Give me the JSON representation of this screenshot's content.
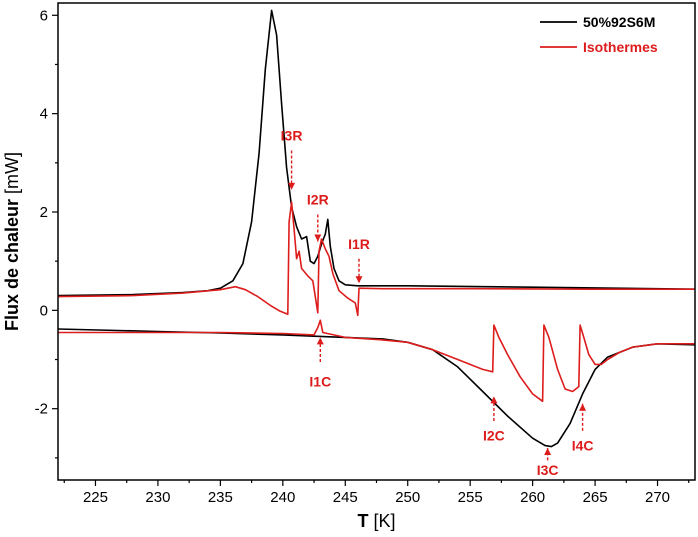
{
  "chart_data": {
    "type": "line",
    "title": "",
    "xlabel_bold": "T",
    "xlabel_unit": "[K]",
    "ylabel_bold": "Flux de chaleur",
    "ylabel_unit": "[mW]",
    "xlim": [
      222,
      273
    ],
    "ylim": [
      -3.45,
      6.25
    ],
    "x_ticks": [
      225,
      230,
      235,
      240,
      245,
      250,
      255,
      260,
      265,
      270
    ],
    "y_ticks": [
      6,
      4,
      2,
      0,
      -2
    ],
    "grid": false,
    "legend_position": "top-right",
    "colors": {
      "black": "#000000",
      "red": "#dd1c1c"
    },
    "series": [
      {
        "name": "50%92S6M",
        "color": "#000000",
        "segments": [
          [
            [
              222,
              0.3
            ],
            [
              228,
              0.32
            ],
            [
              232,
              0.36
            ],
            [
              234,
              0.4
            ],
            [
              235,
              0.45
            ],
            [
              236,
              0.6
            ],
            [
              236.8,
              0.95
            ],
            [
              237.5,
              1.8
            ],
            [
              238.1,
              3.2
            ],
            [
              238.6,
              4.9
            ],
            [
              239.1,
              6.1
            ],
            [
              239.5,
              5.6
            ],
            [
              239.9,
              4.2
            ],
            [
              240.3,
              2.9
            ],
            [
              240.7,
              2.1
            ],
            [
              241.1,
              1.7
            ],
            [
              241.5,
              1.45
            ],
            [
              241.9,
              1.5
            ],
            [
              242.2,
              1.0
            ],
            [
              242.5,
              0.95
            ],
            [
              242.8,
              1.1
            ],
            [
              243.1,
              1.35
            ],
            [
              243.4,
              1.55
            ],
            [
              243.6,
              1.85
            ],
            [
              243.8,
              1.3
            ],
            [
              244.1,
              0.85
            ],
            [
              244.5,
              0.6
            ],
            [
              245,
              0.52
            ],
            [
              246,
              0.5
            ],
            [
              250,
              0.5
            ],
            [
              260,
              0.47
            ],
            [
              273,
              0.43
            ]
          ],
          [
            [
              222,
              -0.38
            ],
            [
              230,
              -0.43
            ],
            [
              235,
              -0.46
            ],
            [
              240,
              -0.5
            ],
            [
              245,
              -0.55
            ],
            [
              248,
              -0.58
            ],
            [
              250,
              -0.65
            ],
            [
              252,
              -0.8
            ],
            [
              254,
              -1.15
            ],
            [
              256,
              -1.65
            ],
            [
              258,
              -2.15
            ],
            [
              260,
              -2.6
            ],
            [
              261,
              -2.75
            ],
            [
              261.5,
              -2.77
            ],
            [
              262,
              -2.7
            ],
            [
              263,
              -2.3
            ],
            [
              264,
              -1.7
            ],
            [
              265,
              -1.2
            ],
            [
              266,
              -0.95
            ],
            [
              268,
              -0.75
            ],
            [
              270,
              -0.68
            ],
            [
              273,
              -0.7
            ]
          ]
        ]
      },
      {
        "name": "Isothermes",
        "color": "#dd1c1c",
        "segments": [
          [
            [
              222,
              0.28
            ],
            [
              228,
              0.3
            ],
            [
              232,
              0.35
            ],
            [
              235,
              0.42
            ],
            [
              236.2,
              0.48
            ],
            [
              237,
              0.42
            ],
            [
              238,
              0.28
            ],
            [
              239,
              0.1
            ],
            [
              239.8,
              -0.02
            ],
            [
              240.4,
              -0.08
            ],
            [
              240.5,
              1.8
            ],
            [
              240.7,
              2.2
            ],
            [
              240.9,
              1.65
            ],
            [
              241.1,
              1.05
            ],
            [
              241.3,
              1.2
            ],
            [
              241.5,
              0.85
            ],
            [
              242,
              0.7
            ],
            [
              242.4,
              0.6
            ],
            [
              242.8,
              -0.05
            ],
            [
              242.9,
              1.2
            ],
            [
              243.1,
              1.45
            ],
            [
              243.4,
              1.25
            ],
            [
              243.7,
              1.1
            ],
            [
              244,
              0.75
            ],
            [
              244.5,
              0.4
            ],
            [
              245.2,
              0.25
            ],
            [
              245.8,
              0.15
            ],
            [
              246,
              -0.1
            ],
            [
              246.1,
              0.45
            ],
            [
              248,
              0.44
            ],
            [
              255,
              0.44
            ],
            [
              265,
              0.43
            ],
            [
              273,
              0.43
            ]
          ],
          [
            [
              222,
              -0.45
            ],
            [
              228,
              -0.45
            ],
            [
              235,
              -0.45
            ],
            [
              240,
              -0.47
            ],
            [
              242.5,
              -0.5
            ],
            [
              242.8,
              -0.35
            ],
            [
              243,
              -0.2
            ],
            [
              243.2,
              -0.45
            ],
            [
              245,
              -0.55
            ],
            [
              248,
              -0.6
            ],
            [
              250,
              -0.65
            ],
            [
              252,
              -0.8
            ],
            [
              254,
              -1.0
            ],
            [
              256,
              -1.2
            ],
            [
              256.8,
              -1.25
            ],
            [
              256.9,
              -0.3
            ],
            [
              257.3,
              -0.55
            ],
            [
              258,
              -0.9
            ],
            [
              259,
              -1.35
            ],
            [
              260,
              -1.7
            ],
            [
              260.8,
              -1.85
            ],
            [
              260.9,
              -0.3
            ],
            [
              261.3,
              -0.55
            ],
            [
              262,
              -1.2
            ],
            [
              262.6,
              -1.6
            ],
            [
              263.2,
              -1.65
            ],
            [
              263.7,
              -1.55
            ],
            [
              263.8,
              -0.3
            ],
            [
              264.1,
              -0.55
            ],
            [
              264.5,
              -0.9
            ],
            [
              265,
              -1.1
            ],
            [
              265.5,
              -1.1
            ],
            [
              266,
              -1.0
            ],
            [
              267,
              -0.85
            ],
            [
              268,
              -0.75
            ],
            [
              270,
              -0.68
            ],
            [
              273,
              -0.68
            ]
          ]
        ]
      }
    ],
    "annotations": [
      {
        "label": "I3R",
        "x": 240.7,
        "y_text": 3.45,
        "y_arrow_start": 3.25,
        "y_arrow_end": 2.45,
        "dir": "down",
        "text_pos": "above"
      },
      {
        "label": "I2R",
        "x": 242.8,
        "y_text": 2.15,
        "y_arrow_start": 1.95,
        "y_arrow_end": 1.4,
        "dir": "down",
        "text_pos": "above"
      },
      {
        "label": "I1R",
        "x": 246.1,
        "y_text": 1.25,
        "y_arrow_start": 1.05,
        "y_arrow_end": 0.55,
        "dir": "down",
        "text_pos": "above"
      },
      {
        "label": "I1C",
        "x": 243.0,
        "y_text": -1.45,
        "y_arrow_start": -1.05,
        "y_arrow_end": -0.55,
        "dir": "up",
        "text_pos": "below"
      },
      {
        "label": "I2C",
        "x": 256.9,
        "y_text": -2.55,
        "y_arrow_start": -2.25,
        "y_arrow_end": -1.75,
        "dir": "up",
        "text_pos": "below"
      },
      {
        "label": "I3C",
        "x": 261.2,
        "y_text": -3.25,
        "y_arrow_start": -3.05,
        "y_arrow_end": -2.8,
        "dir": "up",
        "text_pos": "below"
      },
      {
        "label": "I4C",
        "x": 264.0,
        "y_text": -2.75,
        "y_arrow_start": -2.45,
        "y_arrow_end": -1.9,
        "dir": "up",
        "text_pos": "below"
      }
    ]
  }
}
